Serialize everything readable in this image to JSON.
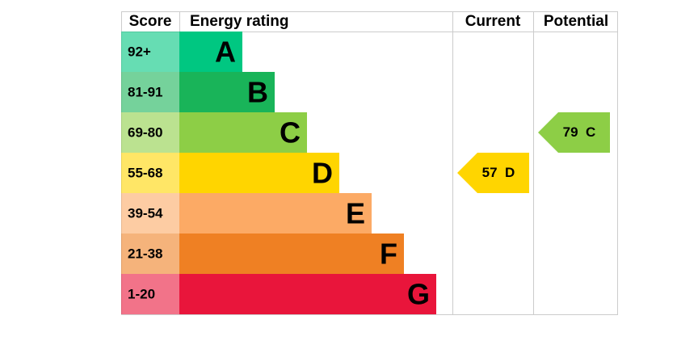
{
  "header": {
    "score": "Score",
    "rating": "Energy rating",
    "current": "Current",
    "potential": "Potential"
  },
  "bands": [
    {
      "score": "92+",
      "letter": "A",
      "color": "#00c781"
    },
    {
      "score": "81-91",
      "letter": "B",
      "color": "#19b459"
    },
    {
      "score": "69-80",
      "letter": "C",
      "color": "#8dce46"
    },
    {
      "score": "55-68",
      "letter": "D",
      "color": "#ffd500"
    },
    {
      "score": "39-54",
      "letter": "E",
      "color": "#fcaa65"
    },
    {
      "score": "21-38",
      "letter": "F",
      "color": "#ef8023"
    },
    {
      "score": "1-20",
      "letter": "G",
      "color": "#e9153b"
    }
  ],
  "current": {
    "score": 57,
    "letter": "D"
  },
  "potential": {
    "score": 79,
    "letter": "C"
  }
}
